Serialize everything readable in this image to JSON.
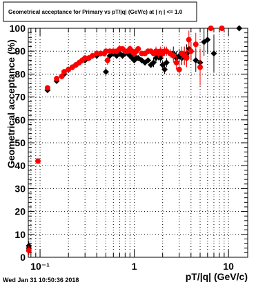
{
  "chart_data": {
    "type": "scatter",
    "title": "Geometrical acceptance for Primary vs pT/|q| (GeV/c) at | η | <= 1.0",
    "xlabel": "pT/|q| (GeV/c)",
    "ylabel": "Geometrical acceptance (%)",
    "x_scale": "log",
    "xlim": [
      0.075,
      16
    ],
    "ylim": [
      0,
      100
    ],
    "x_tick_labels": [
      {
        "value": 0.1,
        "label": "10⁻¹"
      },
      {
        "value": 1,
        "label": "1"
      },
      {
        "value": 10,
        "label": "10"
      }
    ],
    "y_tick_labels": [
      "0",
      "10",
      "20",
      "30",
      "40",
      "50",
      "60",
      "70",
      "80",
      "90",
      "100"
    ],
    "grid": true,
    "series": [
      {
        "marker": "diamond",
        "color": "#000000",
        "x": [
          0.076,
          0.076,
          0.12,
          0.15,
          0.17,
          0.18,
          0.2,
          0.22,
          0.24,
          0.26,
          0.28,
          0.3,
          0.33,
          0.36,
          0.4,
          0.44,
          0.48,
          0.5,
          0.52,
          0.55,
          0.6,
          0.65,
          0.7,
          0.75,
          0.8,
          0.85,
          0.9,
          0.95,
          1.0,
          1.05,
          1.1,
          1.2,
          1.3,
          1.4,
          1.5,
          1.6,
          1.7,
          1.8,
          1.9,
          2.0,
          2.1,
          2.2,
          2.4,
          2.6,
          2.8,
          3.0,
          3.2,
          3.4,
          3.6,
          3.8,
          4.0,
          4.5,
          5.0,
          5.5,
          6.0,
          7.0,
          13.0
        ],
        "y": [
          5,
          4,
          73,
          77,
          79,
          80,
          82,
          83,
          84,
          85,
          86,
          86,
          87,
          88,
          88,
          89,
          89,
          81,
          86,
          88,
          89,
          88,
          89,
          88,
          89,
          89,
          88,
          87,
          86,
          87,
          87,
          86,
          85,
          86,
          84,
          85,
          87,
          88,
          87,
          84,
          82,
          85,
          89,
          89,
          87,
          88,
          87,
          88,
          89,
          91,
          90,
          86,
          85,
          94,
          95,
          89,
          100
        ],
        "y_err": [
          2,
          2,
          1,
          1,
          1,
          1,
          1,
          1,
          1,
          1,
          1,
          1,
          1,
          1,
          1,
          1,
          1,
          2,
          1,
          1,
          1,
          1,
          1,
          1,
          1,
          1,
          1,
          1,
          1,
          1,
          1,
          1,
          1,
          1,
          1,
          2,
          2,
          2,
          2,
          2,
          2,
          2,
          2,
          3,
          3,
          3,
          3,
          4,
          4,
          4,
          4,
          5,
          6,
          6,
          6,
          8,
          0
        ]
      },
      {
        "marker": "circle",
        "color": "#ff0000",
        "x": [
          0.076,
          0.095,
          0.12,
          0.15,
          0.17,
          0.18,
          0.2,
          0.22,
          0.24,
          0.26,
          0.28,
          0.3,
          0.33,
          0.36,
          0.4,
          0.44,
          0.48,
          0.5,
          0.52,
          0.55,
          0.6,
          0.65,
          0.7,
          0.75,
          0.8,
          0.85,
          0.9,
          0.95,
          1.0,
          1.05,
          1.1,
          1.2,
          1.3,
          1.4,
          1.5,
          1.6,
          1.7,
          1.8,
          1.9,
          2.0,
          2.1,
          2.2,
          2.4,
          2.6,
          2.8,
          3.0,
          3.2,
          3.4,
          3.6,
          3.8,
          4.0,
          4.5,
          5.0,
          6.5,
          8.5
        ],
        "y": [
          3,
          42,
          74,
          78,
          79,
          81,
          82,
          83,
          84,
          85,
          86,
          87,
          87,
          88,
          89,
          89,
          89,
          90,
          86,
          90,
          90,
          90,
          91,
          91,
          90,
          90,
          91,
          90,
          89,
          90,
          91,
          89,
          89,
          90,
          90,
          89,
          90,
          89,
          90,
          89,
          90,
          90,
          89,
          88,
          85,
          82,
          89,
          88,
          87,
          95,
          90,
          93,
          83,
          100,
          100
        ],
        "y_err": [
          2,
          1,
          1,
          1,
          1,
          1,
          1,
          1,
          1,
          1,
          1,
          1,
          1,
          1,
          1,
          1,
          1,
          1,
          2,
          1,
          1,
          1,
          1,
          1,
          1,
          1,
          1,
          1,
          1,
          1,
          1,
          1,
          1,
          1,
          1,
          1,
          2,
          2,
          2,
          2,
          2,
          2,
          2,
          3,
          3,
          3,
          3,
          4,
          4,
          4,
          4,
          5,
          8,
          0,
          0
        ]
      }
    ]
  },
  "footer": {
    "timestamp": "Wed Jan 31 10:50:36 2018"
  }
}
